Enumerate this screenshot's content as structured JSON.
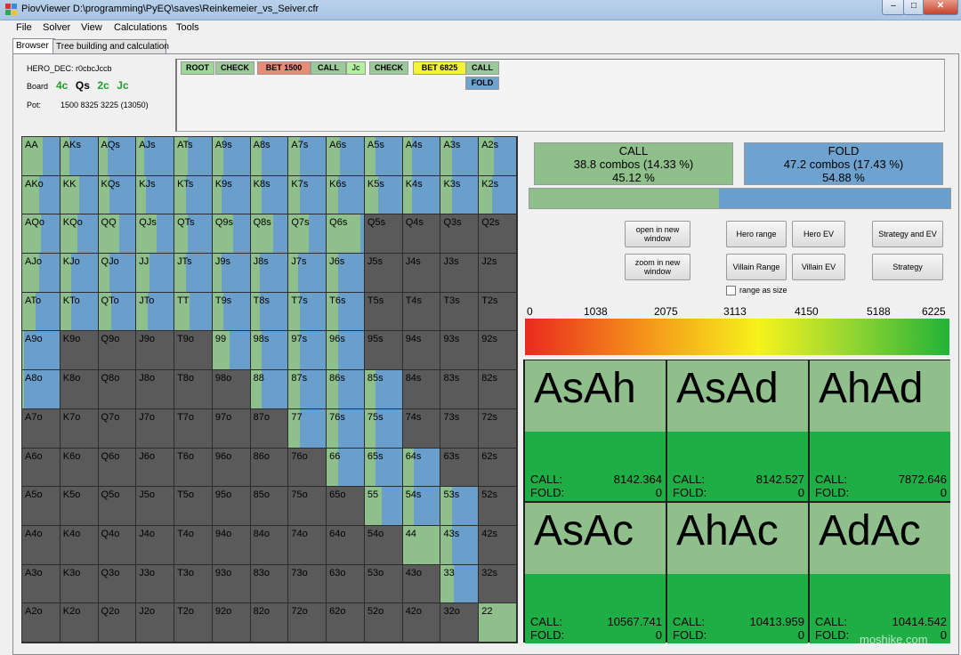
{
  "window": {
    "title": "PiovViewer D:\\programming\\PyEQ\\saves\\Reinkemeier_vs_Seiver.cfr",
    "min": "‒",
    "max": "□",
    "close": "✕"
  },
  "menu": [
    "File",
    "Solver",
    "View",
    "Calculations",
    "Tools"
  ],
  "tabs": [
    "Browser",
    "Tree building and calculation"
  ],
  "info": {
    "hero_dec": "HERO_DEC: r0cbcJccb",
    "board_label": "Board",
    "board_cards": [
      {
        "text": "4c",
        "color": "#1f9e2b"
      },
      {
        "text": "Qs",
        "color": "#000000"
      },
      {
        "text": "2c",
        "color": "#1f9e2b"
      },
      {
        "text": "Jc",
        "color": "#1f9e2b"
      }
    ],
    "pot_label": "Pot:",
    "pot_value": "1500 8325 3225 (13050)"
  },
  "path": [
    {
      "label": "ROOT",
      "color": "#9fd89a"
    },
    {
      "label": "CHECK",
      "color": "#9cc99a"
    },
    {
      "label": "BET 1500",
      "color": "#e88c78"
    },
    {
      "label": "CALL",
      "color": "#9cc99a"
    },
    {
      "label": "Jc",
      "color": "#b5f0a0"
    },
    {
      "label": "CHECK",
      "color": "#9cc99a"
    },
    {
      "label": "BET 6825",
      "color": "#f3f33a"
    },
    {
      "label": "CALL",
      "color": "#9cc99a"
    },
    {
      "label": "FOLD",
      "color": "#6fa3cf"
    }
  ],
  "ranks": [
    "A",
    "K",
    "Q",
    "J",
    "T",
    "9",
    "8",
    "7",
    "6",
    "5",
    "4",
    "3",
    "2"
  ],
  "matrix_fill": [
    [
      0.55,
      0.25,
      0.25,
      0.2,
      0.35,
      0.3,
      0.3,
      0.3,
      0.35,
      0.3,
      0.25,
      0.3,
      0.4
    ],
    [
      0.45,
      0.5,
      0.3,
      0.25,
      0.3,
      0.25,
      0.3,
      0.3,
      0.3,
      0.35,
      0.25,
      0.3,
      0.35
    ],
    [
      0.5,
      0.45,
      0.55,
      0.55,
      0.35,
      0.55,
      0.6,
      0.55,
      0.9,
      0,
      0,
      0,
      0
    ],
    [
      0.45,
      0.3,
      0.3,
      0.35,
      0.3,
      0.25,
      0.25,
      0.25,
      0.3,
      0,
      0,
      0,
      0
    ],
    [
      0.35,
      0.3,
      0.35,
      0.3,
      0.4,
      0.3,
      0.25,
      0.3,
      0.3,
      0,
      0,
      0,
      0
    ],
    [
      0.05,
      0,
      0,
      0,
      0,
      0.45,
      0.3,
      0.3,
      0.3,
      0,
      0,
      0,
      0
    ],
    [
      0.05,
      0,
      0,
      0,
      0,
      0,
      0.3,
      0.3,
      0.3,
      0.3,
      0,
      0,
      0
    ],
    [
      0,
      0,
      0,
      0,
      0,
      0,
      0,
      0.3,
      0.3,
      0.3,
      0,
      0,
      0
    ],
    [
      0,
      0,
      0,
      0,
      0,
      0,
      0,
      0,
      0.3,
      0.3,
      0.3,
      0,
      0
    ],
    [
      0,
      0,
      0,
      0,
      0,
      0,
      0,
      0,
      0,
      0.45,
      0.3,
      0.3,
      0
    ],
    [
      0,
      0,
      0,
      0,
      0,
      0,
      0,
      0,
      0,
      0,
      1,
      0.3,
      0
    ],
    [
      0,
      0,
      0,
      0,
      0,
      0,
      0,
      0,
      0,
      0,
      0,
      0.35,
      0
    ],
    [
      0,
      0,
      0,
      0,
      0,
      0,
      0,
      0,
      0,
      0,
      0,
      0,
      1
    ]
  ],
  "colors": {
    "call": "#8fbf8b",
    "fold": "#6a9fcc",
    "empty": "#5a5a5a"
  },
  "actions": {
    "call": {
      "name": "CALL",
      "combos": "38.8 combos (14.33 %)",
      "pct": "45.12 %",
      "share": 0.4512
    },
    "fold": {
      "name": "FOLD",
      "combos": "47.2 combos (17.43 %)",
      "pct": "54.88 %",
      "share": 0.5488
    }
  },
  "buttons": {
    "open_new": "open in new window",
    "zoom_new": "zoom in new window",
    "hero_range": "Hero range",
    "hero_ev": "Hero EV",
    "strategy_ev": "Strategy and EV",
    "villain_range": "Villain Range",
    "villain_ev": "Villain EV",
    "strategy": "Strategy",
    "range_as_size": "range as size"
  },
  "scale": [
    "0",
    "1038",
    "2075",
    "3113",
    "4150",
    "5188",
    "6225"
  ],
  "combos": [
    {
      "name": "AsAh",
      "call_label": "CALL:",
      "call": "8142.364",
      "fold_label": "FOLD:",
      "fold": "0"
    },
    {
      "name": "AsAd",
      "call_label": "CALL:",
      "call": "8142.527",
      "fold_label": "FOLD:",
      "fold": "0"
    },
    {
      "name": "AhAd",
      "call_label": "CALL:",
      "call": "7872.646",
      "fold_label": "FOLD:",
      "fold": "0"
    },
    {
      "name": "AsAc",
      "call_label": "CALL:",
      "call": "10567.741",
      "fold_label": "FOLD:",
      "fold": "0"
    },
    {
      "name": "AhAc",
      "call_label": "CALL:",
      "call": "10413.959",
      "fold_label": "FOLD:",
      "fold": "0"
    },
    {
      "name": "AdAc",
      "call_label": "CALL:",
      "call": "10414.542",
      "fold_label": "FOLD:",
      "fold": "0"
    }
  ],
  "watermark": "moshike.com"
}
